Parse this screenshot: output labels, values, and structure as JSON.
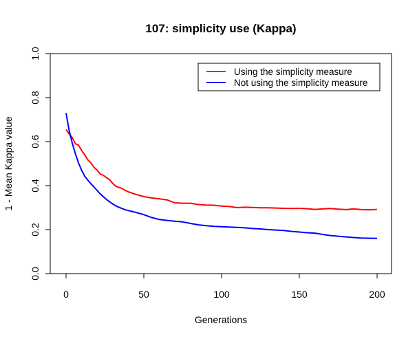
{
  "chart_data": {
    "type": "line",
    "title": "107: simplicity use (Kappa)",
    "xlabel": "Generations",
    "ylabel": "1 - Mean Kappa value",
    "xlim": [
      0,
      200
    ],
    "ylim": [
      0,
      1
    ],
    "xticks": [
      "0",
      "50",
      "100",
      "150",
      "200"
    ],
    "yticks": [
      "0.0",
      "0.2",
      "0.4",
      "0.6",
      "0.8",
      "1.0"
    ],
    "grid": false,
    "legend_position": "top-right",
    "series": [
      {
        "name": "Using the simplicity measure",
        "color": "#ff0000",
        "x": [
          0,
          2,
          4,
          6,
          8,
          10,
          12,
          14,
          16,
          18,
          20,
          22,
          24,
          26,
          28,
          30,
          32,
          34,
          36,
          38,
          40,
          45,
          50,
          55,
          60,
          65,
          70,
          75,
          80,
          85,
          90,
          95,
          100,
          105,
          110,
          115,
          120,
          125,
          130,
          135,
          140,
          145,
          150,
          155,
          160,
          165,
          170,
          175,
          180,
          185,
          190,
          195,
          200
        ],
        "y": [
          0.655,
          0.635,
          0.618,
          0.59,
          0.584,
          0.56,
          0.54,
          0.517,
          0.503,
          0.483,
          0.47,
          0.453,
          0.447,
          0.436,
          0.427,
          0.41,
          0.397,
          0.392,
          0.387,
          0.378,
          0.372,
          0.36,
          0.35,
          0.344,
          0.34,
          0.335,
          0.322,
          0.32,
          0.32,
          0.314,
          0.312,
          0.311,
          0.307,
          0.305,
          0.3,
          0.302,
          0.301,
          0.299,
          0.299,
          0.298,
          0.297,
          0.296,
          0.297,
          0.295,
          0.292,
          0.294,
          0.296,
          0.293,
          0.291,
          0.294,
          0.291,
          0.29,
          0.292
        ]
      },
      {
        "name": "Not using the simplicity measure",
        "color": "#0000ff",
        "x": [
          0,
          2,
          4,
          6,
          8,
          10,
          12,
          14,
          16,
          18,
          20,
          22,
          24,
          26,
          28,
          30,
          32,
          34,
          36,
          38,
          40,
          45,
          50,
          55,
          60,
          65,
          70,
          75,
          80,
          85,
          90,
          95,
          100,
          105,
          110,
          115,
          120,
          125,
          130,
          135,
          140,
          145,
          150,
          155,
          160,
          165,
          170,
          175,
          180,
          185,
          190,
          195,
          200
        ],
        "y": [
          0.73,
          0.65,
          0.593,
          0.545,
          0.503,
          0.47,
          0.443,
          0.425,
          0.408,
          0.393,
          0.378,
          0.362,
          0.35,
          0.337,
          0.326,
          0.317,
          0.308,
          0.302,
          0.296,
          0.29,
          0.287,
          0.278,
          0.268,
          0.255,
          0.246,
          0.242,
          0.238,
          0.235,
          0.228,
          0.222,
          0.218,
          0.215,
          0.213,
          0.212,
          0.21,
          0.208,
          0.205,
          0.203,
          0.2,
          0.198,
          0.196,
          0.192,
          0.189,
          0.186,
          0.184,
          0.178,
          0.173,
          0.17,
          0.167,
          0.164,
          0.162,
          0.161,
          0.16
        ]
      }
    ]
  }
}
